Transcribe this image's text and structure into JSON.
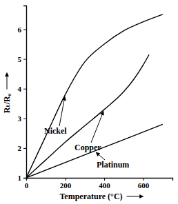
{
  "chart_data": {
    "type": "line",
    "x_label": "Temperature (°C)",
    "y_label": "Rₜ/R₀",
    "xlim": [
      0,
      750
    ],
    "ylim": [
      1,
      6.8
    ],
    "xticks": [
      0,
      200,
      400,
      600
    ],
    "yticks": [
      1,
      2,
      3,
      4,
      5,
      6
    ],
    "series": [
      {
        "name": "Nickel",
        "color": "#000000",
        "x": [
          0,
          100,
          200,
          300,
          400,
          500,
          600,
          700
        ],
        "values": [
          1,
          2.4,
          3.8,
          4.9,
          5.5,
          5.95,
          6.25,
          6.5
        ]
      },
      {
        "name": "Copper",
        "color": "#000000",
        "x": [
          0,
          100,
          200,
          300,
          400,
          500,
          550,
          600,
          630
        ],
        "values": [
          1,
          1.6,
          2.2,
          2.75,
          3.3,
          3.9,
          4.3,
          4.8,
          5.15
        ]
      },
      {
        "name": "Platinum",
        "color": "#000000",
        "x": [
          0,
          350,
          700
        ],
        "values": [
          1,
          1.9,
          2.8
        ]
      }
    ]
  }
}
